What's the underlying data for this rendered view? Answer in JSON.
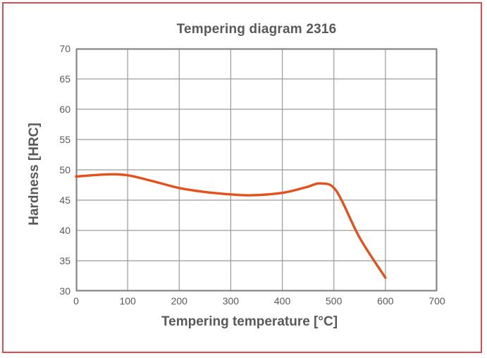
{
  "page": {
    "border_color": "#e04a50",
    "background": "#ffffff"
  },
  "chart_data": {
    "type": "line",
    "title": "Tempering diagram 2316",
    "xlabel": "Tempering temperature [°C]",
    "ylabel": "Hardness [HRC]",
    "xlim": [
      0,
      700
    ],
    "ylim": [
      30,
      70
    ],
    "x_ticks": [
      0,
      100,
      200,
      300,
      400,
      500,
      600,
      700
    ],
    "y_ticks": [
      30,
      35,
      40,
      45,
      50,
      55,
      60,
      65,
      70
    ],
    "grid": true,
    "legend": false,
    "series": [
      {
        "name": "Hardness",
        "color": "#e4511c",
        "x": [
          0,
          60,
          100,
          150,
          200,
          250,
          300,
          340,
          400,
          445,
          475,
          505,
          550,
          600
        ],
        "y": [
          48.9,
          49.25,
          49.1,
          48.1,
          47.0,
          46.35,
          45.95,
          45.8,
          46.2,
          47.1,
          47.75,
          46.5,
          38.8,
          32.2
        ]
      }
    ],
    "colors": {
      "grid": "#9a9a9a",
      "frame": "#7f7f7f",
      "text": "#595959",
      "line": "#e4511c"
    }
  }
}
